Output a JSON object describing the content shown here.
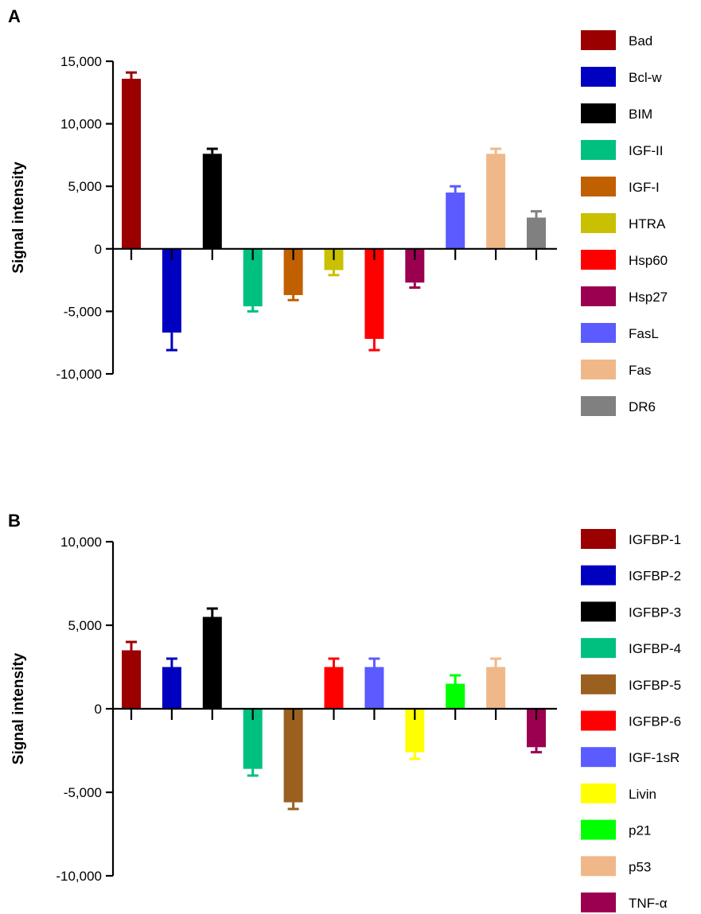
{
  "chart_data": [
    {
      "type": "bar",
      "panel_label": "A",
      "ylabel": "Signal intensity",
      "ylim": [
        -10000,
        15000
      ],
      "yticks": [
        15000,
        10000,
        5000,
        0,
        -5000,
        -10000
      ],
      "ytick_labels": [
        "15,000",
        "10,000",
        "5,000",
        "0",
        "-5,000",
        "-10,000"
      ],
      "legend_position": "right",
      "grid": false,
      "categories": [
        "Bad",
        "Bcl-w",
        "BIM",
        "IGF-II",
        "IGF-I",
        "HTRA",
        "Hsp60",
        "Hsp27",
        "FasL",
        "Fas",
        "DR6"
      ],
      "values": [
        13600,
        -6700,
        7600,
        -4600,
        -3700,
        -1700,
        -7200,
        -2700,
        4500,
        7600,
        2500
      ],
      "errors": [
        500,
        1400,
        400,
        400,
        400,
        400,
        900,
        400,
        500,
        400,
        500
      ],
      "colors": [
        "#9b0000",
        "#0000c0",
        "#000000",
        "#00c080",
        "#c06000",
        "#c8c000",
        "#ff0000",
        "#9b0050",
        "#5b5bff",
        "#f0b888",
        "#808080"
      ]
    },
    {
      "type": "bar",
      "panel_label": "B",
      "ylabel": "Signal intensity",
      "ylim": [
        -10000,
        10000
      ],
      "yticks": [
        10000,
        5000,
        0,
        -5000,
        -10000
      ],
      "ytick_labels": [
        "10,000",
        "5,000",
        "0",
        "-5,000",
        "-10,000"
      ],
      "legend_position": "right",
      "grid": false,
      "categories": [
        "IGFBP-1",
        "IGFBP-2",
        "IGFBP-3",
        "IGFBP-4",
        "IGFBP-5",
        "IGFBP-6",
        "IGF-1sR",
        "Livin",
        "p21",
        "p53",
        "TNF-α"
      ],
      "values": [
        3500,
        2500,
        5500,
        -3600,
        -5600,
        2500,
        2500,
        -2600,
        1500,
        2500,
        -2300
      ],
      "errors": [
        500,
        500,
        500,
        400,
        400,
        500,
        500,
        400,
        500,
        500,
        300
      ],
      "colors": [
        "#9b0000",
        "#0000c0",
        "#000000",
        "#00c080",
        "#9b6020",
        "#ff0000",
        "#5b5bff",
        "#ffff00",
        "#00ff00",
        "#f0b888",
        "#9b0050"
      ]
    }
  ]
}
